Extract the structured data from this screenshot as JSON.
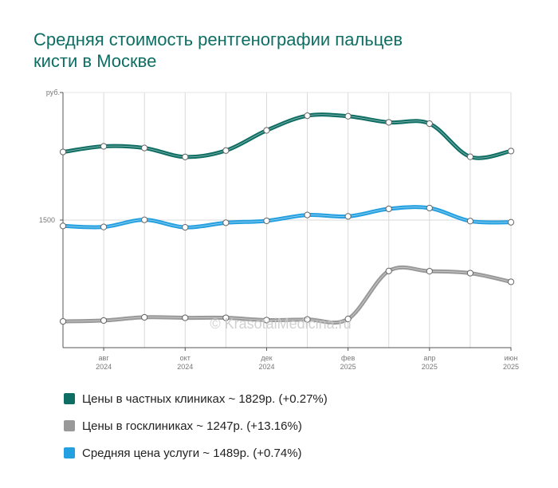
{
  "title_lines": [
    "Средняя стоимость рентгенографии пальцев",
    "кисти в Москве"
  ],
  "watermark": "© KrasotaiMedicina.ru",
  "chart_data": {
    "type": "line",
    "title": "Средняя стоимость рентгенографии пальцев кисти в Москве",
    "ylabel": "руб.",
    "y_tick_labels": [
      "1500"
    ],
    "ylim": [
      500,
      2500
    ],
    "x": [
      "2024-07",
      "2024-08",
      "2024-09",
      "2024-10",
      "2024-11",
      "2024-12",
      "2025-01",
      "2025-02",
      "2025-03",
      "2025-04",
      "2025-05",
      "2025-06"
    ],
    "x_tick_labels": [
      {
        "month": "авг",
        "year": "2024"
      },
      {
        "month": "окт",
        "year": "2024"
      },
      {
        "month": "дек",
        "year": "2024"
      },
      {
        "month": "фев",
        "year": "2025"
      },
      {
        "month": "апр",
        "year": "2025"
      },
      {
        "month": "июн",
        "year": "2025"
      }
    ],
    "grid": true,
    "series": [
      {
        "name": "Цены в частных клиниках",
        "color": "#0e6e63",
        "values": [
          2034,
          2078,
          2065,
          1995,
          2045,
          2203,
          2318,
          2314,
          2266,
          2256,
          1996,
          2041
        ]
      },
      {
        "name": "Цены в госклиниках",
        "color": "#999999",
        "values": [
          706,
          713,
          738,
          734,
          734,
          716,
          721,
          725,
          1101,
          1099,
          1084,
          1016
        ]
      },
      {
        "name": "Средняя цена услуги",
        "color": "#24a0e0",
        "values": [
          1454,
          1446,
          1502,
          1443,
          1479,
          1494,
          1540,
          1529,
          1588,
          1594,
          1492,
          1483
        ]
      }
    ],
    "legend_position": "bottom"
  },
  "legend": [
    {
      "label": "Цены в частных клиниках ~ 1829р. (+0.27%)",
      "color": "#0e6e63"
    },
    {
      "label": "Цены в госклиниках ~ 1247р. (+13.16%)",
      "color": "#999999"
    },
    {
      "label": "Средняя цена услуги ~ 1489р. (+0.74%)",
      "color": "#24a0e0"
    }
  ]
}
